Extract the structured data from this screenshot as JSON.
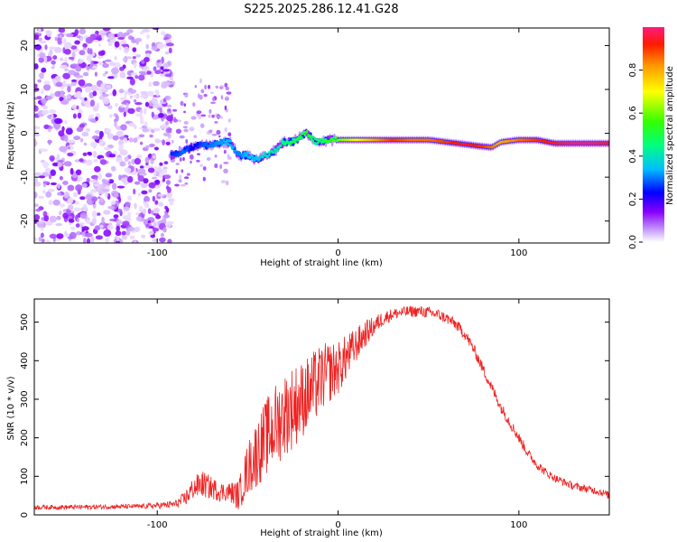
{
  "title": "S225.2025.286.12.41.G28",
  "chart_data": [
    {
      "type": "heatmap",
      "xlabel": "Height of straight line (km)",
      "ylabel": "Frequency (Hz)",
      "xlim": [
        -168,
        150
      ],
      "ylim": [
        -25,
        24
      ],
      "xticks": [
        -100,
        0,
        100
      ],
      "yticks": [
        -20,
        -10,
        0,
        10,
        20
      ],
      "xtick_labels": [
        "-100",
        "0",
        "100"
      ],
      "ytick_labels": [
        "-20",
        "-10",
        "0",
        "10",
        "20"
      ],
      "colorbar": {
        "label": "Normalized spectral amplitude",
        "range": [
          0,
          1
        ],
        "ticks": [
          0,
          0.2,
          0.4,
          0.6,
          0.8
        ],
        "tick_labels": [
          "0.0",
          "0.2",
          "0.4",
          "0.6",
          "0.8"
        ]
      },
      "noise_region_x": [
        -168,
        -92
      ],
      "ridge": {
        "x": [
          -92,
          -85,
          -80,
          -75,
          -70,
          -65,
          -60,
          -55,
          -50,
          -45,
          -40,
          -35,
          -30,
          -25,
          -20,
          -17,
          -12,
          -5,
          0,
          10,
          20,
          30,
          40,
          50,
          60,
          70,
          80,
          85,
          90,
          100,
          110,
          120,
          130,
          140,
          150
        ],
        "freq": [
          -5,
          -4,
          -3,
          -2.5,
          -3,
          -2,
          -2,
          -5,
          -5,
          -6,
          -5,
          -4,
          -2,
          -2,
          -0.5,
          0,
          -2,
          -1.5,
          -1.5,
          -1.5,
          -1.5,
          -1.5,
          -1.5,
          -1.5,
          -2,
          -2.5,
          -3,
          -3.2,
          -2,
          -1.5,
          -1.5,
          -2.3,
          -2.3,
          -2.3,
          -2.3
        ],
        "amp": [
          0.25,
          0.3,
          0.22,
          0.28,
          0.3,
          0.32,
          0.35,
          0.3,
          0.35,
          0.35,
          0.4,
          0.4,
          0.45,
          0.5,
          0.5,
          0.55,
          0.45,
          0.55,
          0.6,
          0.7,
          0.8,
          0.9,
          0.85,
          0.85,
          0.9,
          0.95,
          0.9,
          0.85,
          0.8,
          0.85,
          0.9,
          0.95,
          1.0,
          1.0,
          0.95
        ]
      }
    },
    {
      "type": "line",
      "xlabel": "Height of straight line (km)",
      "ylabel": "SNR (10 * v/v)",
      "xlim": [
        -168,
        150
      ],
      "ylim": [
        0,
        560
      ],
      "xticks": [
        -100,
        0,
        100
      ],
      "yticks": [
        0,
        100,
        200,
        300,
        400,
        500
      ],
      "xtick_labels": [
        "-100",
        "0",
        "100"
      ],
      "ytick_labels": [
        "0",
        "100",
        "200",
        "300",
        "400",
        "500"
      ],
      "series": [
        {
          "name": "SNR",
          "color": "#ee2222",
          "x": [
            -168,
            -150,
            -130,
            -110,
            -100,
            -90,
            -85,
            -80,
            -75,
            -70,
            -65,
            -60,
            -55,
            -50,
            -45,
            -40,
            -35,
            -30,
            -25,
            -20,
            -15,
            -10,
            -5,
            0,
            5,
            10,
            15,
            20,
            25,
            30,
            35,
            40,
            45,
            50,
            55,
            60,
            65,
            70,
            75,
            80,
            85,
            90,
            95,
            100,
            105,
            110,
            115,
            120,
            125,
            130,
            135,
            140,
            145,
            150
          ],
          "values": [
            20,
            20,
            21,
            22,
            24,
            28,
            40,
            70,
            80,
            70,
            60,
            60,
            50,
            120,
            160,
            200,
            230,
            260,
            280,
            300,
            320,
            350,
            370,
            380,
            410,
            440,
            470,
            490,
            510,
            520,
            525,
            528,
            528,
            525,
            520,
            510,
            495,
            470,
            430,
            380,
            330,
            280,
            240,
            200,
            160,
            130,
            110,
            95,
            85,
            75,
            70,
            65,
            60,
            50
          ],
          "noise": [
            6,
            6,
            6,
            6,
            8,
            10,
            20,
            30,
            35,
            30,
            25,
            25,
            40,
            70,
            90,
            100,
            110,
            110,
            110,
            100,
            100,
            90,
            80,
            70,
            60,
            45,
            35,
            25,
            20,
            15,
            15,
            15,
            15,
            15,
            15,
            15,
            15,
            15,
            15,
            15,
            15,
            15,
            15,
            14,
            13,
            12,
            11,
            10,
            10,
            10,
            10,
            10,
            10,
            10
          ]
        }
      ]
    }
  ]
}
